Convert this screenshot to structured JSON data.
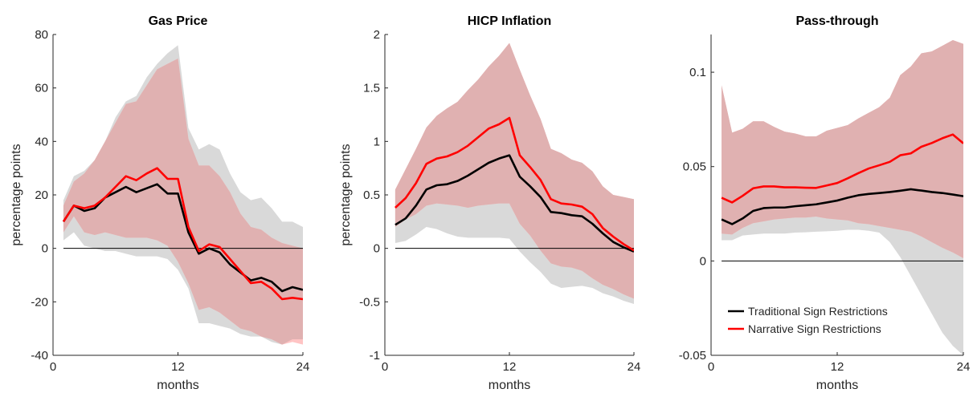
{
  "legend": {
    "placement": "lower-left inside third panel",
    "entries": [
      {
        "name": "Traditional Sign Restrictions",
        "color": "#000000"
      },
      {
        "name": "Narrative Sign Restrictions",
        "color": "#ff0000"
      }
    ]
  },
  "colors": {
    "traditional_band": "#d9d9d9",
    "narrative_band": "#ffc4c4",
    "overlap_band": "#e0b1b1",
    "zero_line": "#000000"
  },
  "chart_data": [
    {
      "type": "line",
      "title": "Gas Price",
      "xlabel": "months",
      "ylabel": "percentage points",
      "xlim": [
        0,
        24
      ],
      "ylim": [
        -40,
        80
      ],
      "xticks": [
        "0",
        "12",
        "24"
      ],
      "yticks": [
        "-40",
        "-20",
        "0",
        "20",
        "40",
        "60",
        "80"
      ],
      "x": [
        1,
        2,
        3,
        4,
        5,
        6,
        7,
        8,
        9,
        10,
        11,
        12,
        13,
        14,
        15,
        16,
        17,
        18,
        19,
        20,
        21,
        22,
        23,
        24
      ],
      "series": [
        {
          "name": "Traditional Sign Restrictions",
          "role": "median",
          "values": [
            10,
            16,
            14,
            15,
            19,
            21,
            23,
            21,
            22.5,
            24,
            20.5,
            20.5,
            6,
            -2,
            0,
            -1.5,
            -6,
            -9,
            -12,
            -11,
            -12.5,
            -16,
            -14.5,
            -15.5
          ]
        },
        {
          "name": "Narrative Sign Restrictions",
          "role": "median",
          "values": [
            10,
            16,
            15,
            16,
            19,
            23,
            27,
            25.5,
            28,
            30,
            26,
            26,
            8,
            -1,
            1.5,
            0.5,
            -4,
            -8.5,
            -13,
            -12.5,
            -15,
            -19,
            -18.5,
            -19
          ]
        }
      ],
      "bands": [
        {
          "series": "Traditional Sign Restrictions",
          "lower": [
            3,
            6,
            1,
            0,
            -1,
            -1,
            -2,
            -3,
            -3,
            -3,
            -4,
            -8,
            -15,
            -28,
            -28,
            -29,
            -30,
            -32,
            -33,
            -33,
            -35,
            -36,
            -34,
            -34
          ],
          "upper": [
            18,
            27,
            29,
            33,
            40,
            49,
            55,
            57,
            64,
            69,
            73,
            76,
            45,
            37,
            39,
            37,
            28,
            21,
            18,
            19,
            15,
            10,
            10,
            8
          ]
        },
        {
          "series": "Narrative Sign Restrictions",
          "lower": [
            6,
            12,
            6,
            5,
            6,
            5,
            4,
            4,
            4,
            3,
            1,
            -5,
            -13,
            -23,
            -22,
            -24,
            -27,
            -30,
            -31,
            -33,
            -34,
            -36,
            -35,
            -36
          ],
          "upper": [
            16,
            25,
            28,
            33,
            40,
            47,
            54,
            55,
            61,
            67,
            69,
            71,
            41,
            31,
            31,
            27,
            21,
            13,
            8,
            7,
            4,
            2,
            1,
            0
          ]
        }
      ]
    },
    {
      "type": "line",
      "title": "HICP Inflation",
      "xlabel": "months",
      "ylabel": "percentage points",
      "xlim": [
        0,
        24
      ],
      "ylim": [
        -1,
        2
      ],
      "xticks": [
        "0",
        "12",
        "24"
      ],
      "yticks": [
        "-1",
        "-0.5",
        "0",
        "0.5",
        "1",
        "1.5",
        "2"
      ],
      "x": [
        1,
        2,
        3,
        4,
        5,
        6,
        7,
        8,
        9,
        10,
        11,
        12,
        13,
        14,
        15,
        16,
        17,
        18,
        19,
        20,
        21,
        22,
        23,
        24
      ],
      "series": [
        {
          "name": "Traditional Sign Restrictions",
          "role": "median",
          "values": [
            0.22,
            0.28,
            0.4,
            0.55,
            0.59,
            0.6,
            0.63,
            0.68,
            0.74,
            0.8,
            0.84,
            0.87,
            0.67,
            0.58,
            0.48,
            0.34,
            0.33,
            0.31,
            0.3,
            0.23,
            0.14,
            0.06,
            0.01,
            -0.03
          ]
        },
        {
          "name": "Narrative Sign Restrictions",
          "role": "median",
          "values": [
            0.38,
            0.47,
            0.61,
            0.79,
            0.84,
            0.86,
            0.9,
            0.96,
            1.04,
            1.12,
            1.16,
            1.22,
            0.87,
            0.76,
            0.64,
            0.46,
            0.42,
            0.41,
            0.39,
            0.32,
            0.19,
            0.11,
            0.04,
            -0.02
          ]
        }
      ],
      "bands": [
        {
          "series": "Traditional Sign Restrictions",
          "lower": [
            0.05,
            0.07,
            0.13,
            0.2,
            0.18,
            0.14,
            0.11,
            0.1,
            0.1,
            0.1,
            0.1,
            0.09,
            -0.03,
            -0.13,
            -0.22,
            -0.33,
            -0.37,
            -0.36,
            -0.35,
            -0.37,
            -0.42,
            -0.45,
            -0.49,
            -0.52
          ]
        },
        {
          "series": "Narrative Sign Restrictions",
          "lower": [
            0.2,
            0.27,
            0.32,
            0.4,
            0.42,
            0.41,
            0.4,
            0.38,
            0.4,
            0.41,
            0.42,
            0.42,
            0.23,
            0.12,
            -0.02,
            -0.14,
            -0.17,
            -0.18,
            -0.21,
            -0.28,
            -0.34,
            -0.38,
            -0.43,
            -0.47
          ],
          "upper": [
            0.55,
            0.74,
            0.93,
            1.13,
            1.24,
            1.31,
            1.37,
            1.48,
            1.58,
            1.7,
            1.8,
            1.92,
            1.67,
            1.43,
            1.21,
            0.93,
            0.89,
            0.83,
            0.8,
            0.72,
            0.58,
            0.5,
            0.48,
            0.46
          ]
        }
      ]
    },
    {
      "type": "line",
      "title": "Pass-through",
      "xlabel": "months",
      "ylabel": "",
      "xlim": [
        0,
        24
      ],
      "ylim": [
        -0.05,
        0.12
      ],
      "xticks": [
        "0",
        "12",
        "24"
      ],
      "yticks": [
        "-0.05",
        "0",
        "0.05",
        "0.1"
      ],
      "x": [
        1,
        2,
        3,
        4,
        5,
        6,
        7,
        8,
        9,
        10,
        11,
        12,
        13,
        14,
        15,
        16,
        17,
        18,
        19,
        20,
        21,
        22,
        23,
        24
      ],
      "series": [
        {
          "name": "Traditional Sign Restrictions",
          "role": "median",
          "values": [
            0.022,
            0.0195,
            0.0225,
            0.0265,
            0.028,
            0.0283,
            0.0283,
            0.029,
            0.0295,
            0.03,
            0.031,
            0.032,
            0.0335,
            0.0348,
            0.0355,
            0.036,
            0.0365,
            0.0372,
            0.038,
            0.0373,
            0.0365,
            0.036,
            0.0352,
            0.0343
          ]
        },
        {
          "name": "Narrative Sign Restrictions",
          "role": "median",
          "values": [
            0.0335,
            0.031,
            0.0345,
            0.0385,
            0.0395,
            0.0395,
            0.039,
            0.039,
            0.0388,
            0.0387,
            0.04,
            0.0413,
            0.0438,
            0.0465,
            0.049,
            0.0507,
            0.0525,
            0.056,
            0.057,
            0.0605,
            0.0625,
            0.065,
            0.067,
            0.0623
          ]
        }
      ],
      "bands": [
        {
          "series": "Traditional Sign Restrictions",
          "lower": [
            0.011,
            0.011,
            0.0135,
            0.014,
            0.0145,
            0.0145,
            0.0145,
            0.015,
            0.0152,
            0.0155,
            0.0157,
            0.016,
            0.0165,
            0.0165,
            0.016,
            0.015,
            0.01,
            0.002,
            -0.008,
            -0.018,
            -0.028,
            -0.038,
            -0.045,
            -0.05
          ]
        },
        {
          "series": "Narrative Sign Restrictions",
          "lower": [
            0.0145,
            0.014,
            0.0175,
            0.02,
            0.021,
            0.022,
            0.0225,
            0.023,
            0.023,
            0.0235,
            0.0225,
            0.022,
            0.0215,
            0.02,
            0.0195,
            0.0185,
            0.0175,
            0.0165,
            0.0155,
            0.013,
            0.01,
            0.007,
            0.0045,
            0.0015
          ],
          "upper": [
            0.093,
            0.068,
            0.07,
            0.074,
            0.074,
            0.071,
            0.0685,
            0.0675,
            0.066,
            0.066,
            0.069,
            0.0705,
            0.072,
            0.0755,
            0.0785,
            0.0815,
            0.0865,
            0.0985,
            0.103,
            0.11,
            0.111,
            0.114,
            0.117,
            0.115
          ]
        }
      ]
    }
  ]
}
